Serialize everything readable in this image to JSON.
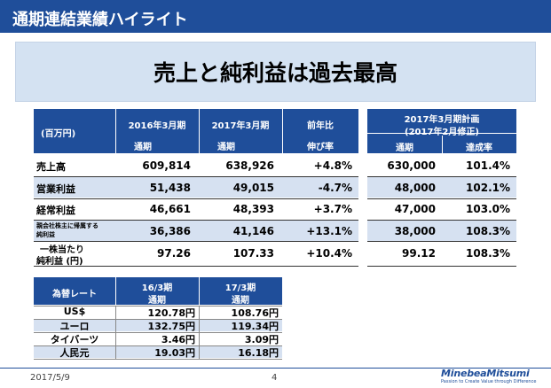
{
  "header": {
    "title": "通期連結業績ハイライト"
  },
  "banner": {
    "text": "売上と純利益は過去最高"
  },
  "results_table": {
    "unit_label": "(百万円)",
    "col_fy2016": "2016年3月期",
    "col_fy2017": "2017年3月期",
    "col_yoy": "前年比",
    "col_plan_line1": "2017年3月期計画",
    "col_plan_line2": "(2017年2月修正)",
    "sub_full_year_1": "通期",
    "sub_full_year_2": "通期",
    "sub_growth": "伸び率",
    "sub_plan_full_year": "通期",
    "sub_achievement": "達成率",
    "rows": [
      {
        "label": "売上高",
        "label_line2": "",
        "fy2016": "609,814",
        "fy2017": "638,926",
        "yoy": "+4.8%",
        "plan": "630,000",
        "achievement": "101.4%"
      },
      {
        "label": "営業利益",
        "label_line2": "",
        "fy2016": "51,438",
        "fy2017": "49,015",
        "yoy": "-4.7%",
        "plan": "48,000",
        "achievement": "102.1%"
      },
      {
        "label": "経常利益",
        "label_line2": "",
        "fy2016": "46,661",
        "fy2017": "48,393",
        "yoy": "+3.7%",
        "plan": "47,000",
        "achievement": "103.0%"
      },
      {
        "label": "親会社株主に帰属する",
        "label_line2": "純利益",
        "fy2016": "36,386",
        "fy2017": "41,146",
        "yoy": "+13.1%",
        "plan": "38,000",
        "achievement": "108.3%"
      },
      {
        "label": "一株当たり",
        "label_line2": "純利益 (円)",
        "fy2016": "97.26",
        "fy2017": "107.33",
        "yoy": "+10.4%",
        "plan": "99.12",
        "achievement": "108.3%"
      }
    ]
  },
  "fx_table": {
    "header_label": "為替レート",
    "col1_line1": "16/3期",
    "col1_line2": "通期",
    "col2_line1": "17/3期",
    "col2_line2": "通期",
    "rows": [
      {
        "currency": "US$",
        "fy2016": "120.78円",
        "fy2017": "108.76円"
      },
      {
        "currency": "ユーロ",
        "fy2016": "132.75円",
        "fy2017": "119.34円"
      },
      {
        "currency": "タイバーツ",
        "fy2016": "3.46円",
        "fy2017": "3.09円"
      },
      {
        "currency": "人民元",
        "fy2016": "19.03円",
        "fy2017": "16.18円"
      }
    ]
  },
  "footer": {
    "date": "2017/5/9",
    "page": "4",
    "logo": "MinebeaMitsumi",
    "logo_tagline": "Passion to Create Value through Difference"
  },
  "colors": {
    "brand_blue": "#1f4e9a",
    "row_shade": "#d6e1f1",
    "banner_bg": "#d4e2f2"
  }
}
